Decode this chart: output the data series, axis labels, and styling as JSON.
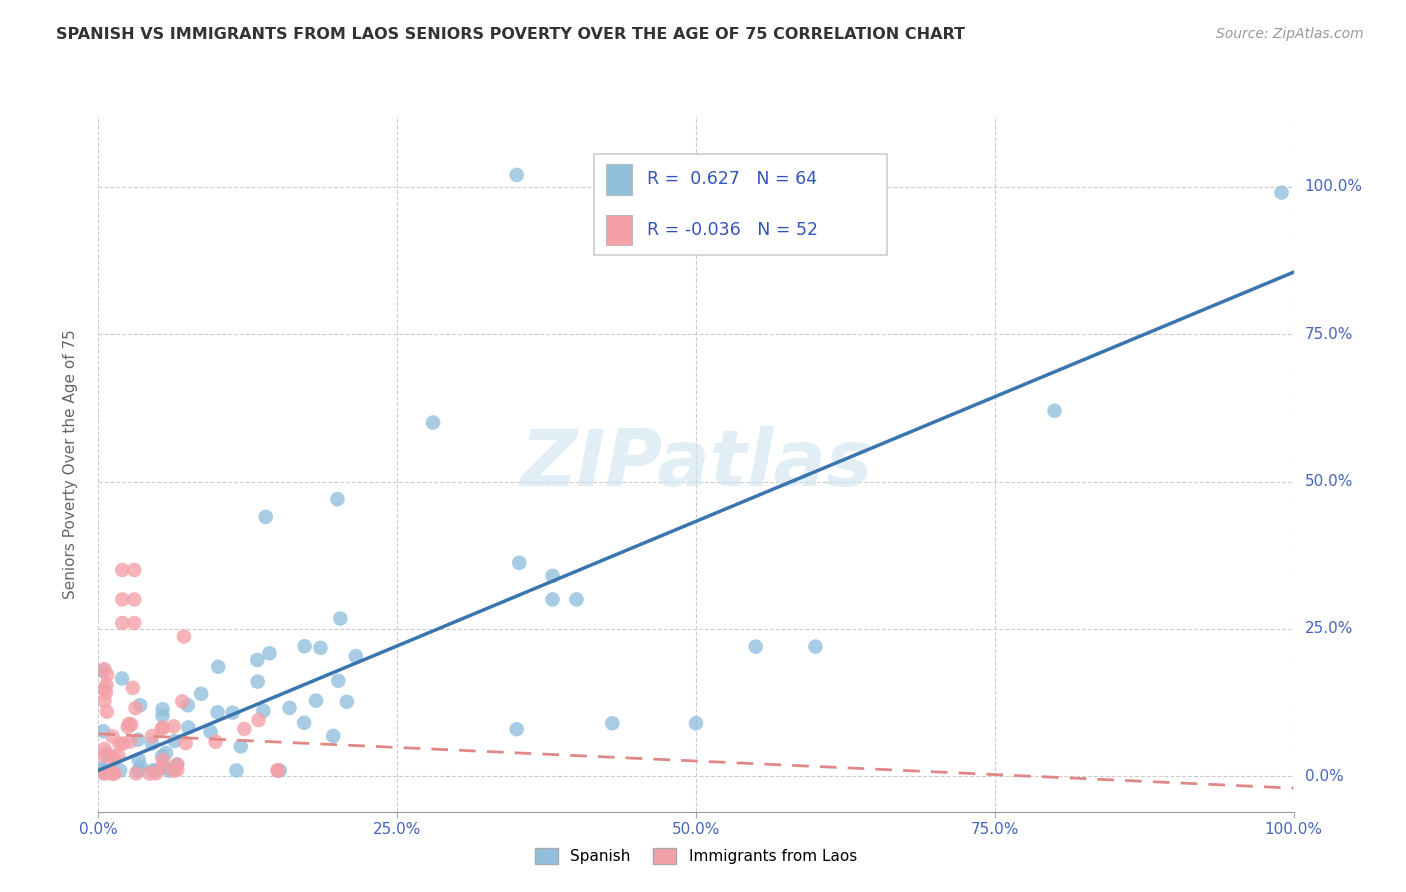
{
  "title": "SPANISH VS IMMIGRANTS FROM LAOS SENIORS POVERTY OVER THE AGE OF 75 CORRELATION CHART",
  "source": "Source: ZipAtlas.com",
  "ylabel": "Seniors Poverty Over the Age of 75",
  "watermark": "ZIPatlas",
  "legend_r1": "0.627",
  "legend_n1": "64",
  "legend_r2": "-0.036",
  "legend_n2": "52",
  "legend_label1": "Spanish",
  "legend_label2": "Immigrants from Laos",
  "blue_color": "#92C0DC",
  "pink_color": "#F4A0A8",
  "trend_blue_color": "#3A75B0",
  "trend_pink_color": "#E08888",
  "xlim": [
    0,
    1
  ],
  "ylim": [
    -0.06,
    1.12
  ],
  "xticks": [
    0.0,
    0.25,
    0.5,
    0.75,
    1.0
  ],
  "yticks": [
    0.0,
    0.25,
    0.5,
    0.75,
    1.0
  ],
  "blue_trend_x0": 0.0,
  "blue_trend_y0": 0.01,
  "blue_trend_x1": 1.0,
  "blue_trend_y1": 0.855,
  "pink_trend_x0": 0.0,
  "pink_trend_y0": 0.072,
  "pink_trend_x1": 1.0,
  "pink_trend_y1": -0.02
}
